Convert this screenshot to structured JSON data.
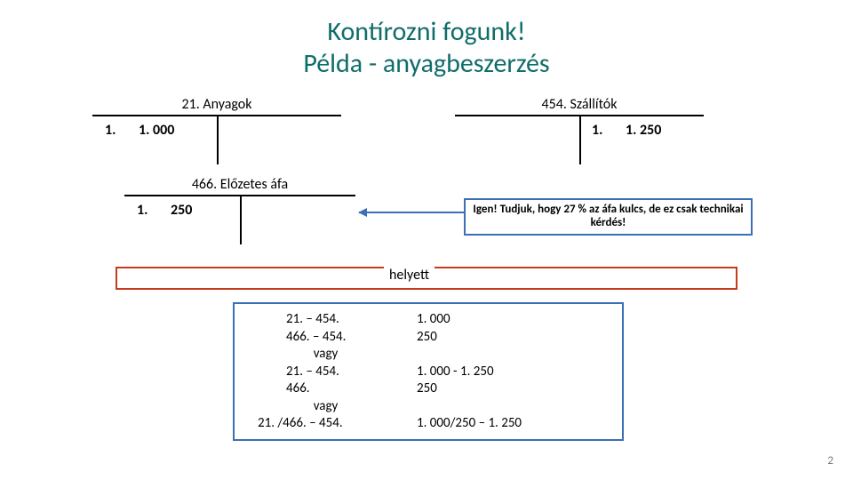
{
  "title_line1": "Kontírozni fogunk!",
  "title_line2": "Példa - anyagbeszerzés",
  "title_color": "#0f6d6a",
  "accounts": {
    "anyagok": {
      "title": "21. Anyagok",
      "left_num": "1.",
      "left_val": "1. 000"
    },
    "szallitok": {
      "title": "454. Szállítók",
      "right_num": "1.",
      "right_val": "1. 250"
    },
    "afa": {
      "title": "466. Előzetes áfa",
      "left_num": "1.",
      "left_val": "250"
    }
  },
  "note": "Igen! Tudjuk, hogy 27 % az áfa kulcs, de ez csak technikai kérdés!",
  "helyett": "helyett",
  "journal": {
    "r1a": "21. – 454.",
    "r1b": "1. 000",
    "r2a": "466. – 454.",
    "r2b": "   250",
    "r3a": "vagy",
    "r4a": "21. – 454.",
    "r4b": "  1. 000  - 1. 250",
    "r5a": "466.",
    "r5b": "     250",
    "r6a": "vagy",
    "r7a": "21. /466. – 454.",
    "r7b": "1. 000/250 – 1. 250"
  },
  "page_number": "2",
  "colors": {
    "accent_blue": "#3b6fb6",
    "accent_red": "#c43b1d"
  }
}
